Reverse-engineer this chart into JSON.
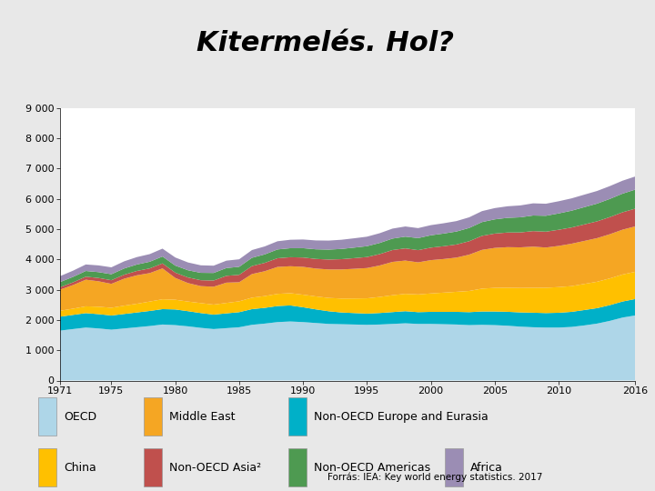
{
  "title": "Kitermelés. Hol?",
  "source": "Forrás: IEA: Key world energy statistics. 2017",
  "years": [
    1971,
    1972,
    1973,
    1974,
    1975,
    1976,
    1977,
    1978,
    1979,
    1980,
    1981,
    1982,
    1983,
    1984,
    1985,
    1986,
    1987,
    1988,
    1989,
    1990,
    1991,
    1992,
    1993,
    1994,
    1995,
    1996,
    1997,
    1998,
    1999,
    2000,
    2001,
    2002,
    2003,
    2004,
    2005,
    2006,
    2007,
    2008,
    2009,
    2010,
    2011,
    2012,
    2013,
    2014,
    2015,
    2016
  ],
  "series": {
    "OECD": [
      1650,
      1700,
      1750,
      1720,
      1680,
      1720,
      1760,
      1800,
      1850,
      1830,
      1790,
      1740,
      1700,
      1730,
      1760,
      1840,
      1880,
      1930,
      1950,
      1930,
      1900,
      1870,
      1860,
      1850,
      1840,
      1850,
      1870,
      1890,
      1870,
      1870,
      1860,
      1850,
      1830,
      1840,
      1830,
      1810,
      1780,
      1760,
      1750,
      1750,
      1770,
      1820,
      1880,
      1970,
      2080,
      2150
    ],
    "Non_OECD_Europe_Eurasia": [
      460,
      468,
      475,
      472,
      468,
      478,
      488,
      498,
      508,
      518,
      500,
      488,
      478,
      488,
      498,
      518,
      520,
      530,
      530,
      490,
      450,
      418,
      388,
      378,
      370,
      380,
      390,
      400,
      388,
      398,
      408,
      418,
      428,
      440,
      450,
      460,
      470,
      480,
      478,
      488,
      498,
      508,
      510,
      520,
      530,
      542
    ],
    "China": [
      195,
      205,
      225,
      245,
      255,
      275,
      288,
      310,
      325,
      320,
      318,
      330,
      330,
      345,
      358,
      378,
      390,
      402,
      405,
      415,
      428,
      440,
      460,
      482,
      505,
      530,
      558,
      572,
      585,
      608,
      635,
      662,
      700,
      755,
      780,
      795,
      808,
      822,
      835,
      848,
      850,
      862,
      872,
      882,
      892,
      900
    ],
    "Middle_East": [
      700,
      780,
      880,
      840,
      790,
      890,
      940,
      940,
      1020,
      720,
      610,
      560,
      590,
      670,
      630,
      780,
      820,
      890,
      890,
      920,
      920,
      940,
      960,
      980,
      1000,
      1040,
      1100,
      1100,
      1060,
      1100,
      1110,
      1130,
      1200,
      1280,
      1320,
      1340,
      1340,
      1360,
      1330,
      1360,
      1400,
      1420,
      1440,
      1460,
      1480,
      1500
    ],
    "Non_OECD_Asia": [
      80,
      90,
      100,
      110,
      120,
      132,
      143,
      155,
      165,
      175,
      185,
      195,
      205,
      225,
      245,
      265,
      276,
      287,
      297,
      308,
      318,
      328,
      340,
      352,
      364,
      376,
      392,
      402,
      403,
      413,
      423,
      433,
      443,
      463,
      473,
      483,
      493,
      513,
      523,
      533,
      535,
      545,
      555,
      565,
      575,
      585
    ],
    "Non_OECD_Americas": [
      170,
      180,
      188,
      193,
      198,
      205,
      213,
      220,
      228,
      233,
      238,
      244,
      250,
      257,
      265,
      272,
      280,
      290,
      298,
      308,
      318,
      328,
      338,
      348,
      358,
      368,
      378,
      388,
      398,
      408,
      418,
      428,
      438,
      455,
      470,
      485,
      500,
      515,
      525,
      540,
      555,
      570,
      585,
      600,
      615,
      630
    ],
    "Africa": [
      195,
      205,
      215,
      222,
      228,
      237,
      245,
      252,
      260,
      268,
      258,
      248,
      240,
      244,
      248,
      256,
      263,
      271,
      279,
      287,
      293,
      298,
      303,
      308,
      314,
      322,
      330,
      336,
      330,
      335,
      340,
      345,
      352,
      362,
      372,
      382,
      392,
      402,
      398,
      402,
      407,
      413,
      418,
      424,
      428,
      433
    ]
  },
  "colors": {
    "OECD": "#aed6e8",
    "Non_OECD_Europe_Eurasia": "#00b0c8",
    "China": "#ffc000",
    "Middle_East": "#f5a623",
    "Non_OECD_Asia": "#c0504d",
    "Non_OECD_Americas": "#4e9a51",
    "Africa": "#9b8db4"
  },
  "stack_order": [
    "OECD",
    "Non_OECD_Europe_Eurasia",
    "China",
    "Middle_East",
    "Non_OECD_Asia",
    "Non_OECD_Americas",
    "Africa"
  ],
  "legend_row1": [
    [
      "OECD",
      "OECD"
    ],
    [
      "Middle_East",
      "Middle East"
    ],
    [
      "Non_OECD_Europe_Eurasia",
      "Non-OECD Europe and Eurasia"
    ]
  ],
  "legend_row2": [
    [
      "China",
      "China"
    ],
    [
      "Non_OECD_Asia",
      "Non-OECD Asia²"
    ],
    [
      "Non_OECD_Americas",
      "Non-OECD Americas"
    ],
    [
      "Africa",
      "Africa"
    ]
  ],
  "ylim": [
    0,
    9000
  ],
  "ytick_vals": [
    0,
    1000,
    2000,
    3000,
    4000,
    5000,
    6000,
    7000,
    8000,
    9000
  ],
  "ytick_labels": [
    "0",
    "1 000",
    "2 000",
    "3 000",
    "4 000",
    "5 000",
    "6 000",
    "7 000",
    "8 000",
    "9 000"
  ],
  "xticks": [
    1971,
    1975,
    1980,
    1985,
    1990,
    1995,
    2000,
    2005,
    2010,
    2016
  ],
  "background_color": "#ffffff",
  "page_bg": "#e8e8e8",
  "title_bg": "#ffffff",
  "title_fontsize": 22,
  "axis_fontsize": 8,
  "legend_fontsize": 9,
  "header_color": "#808080"
}
